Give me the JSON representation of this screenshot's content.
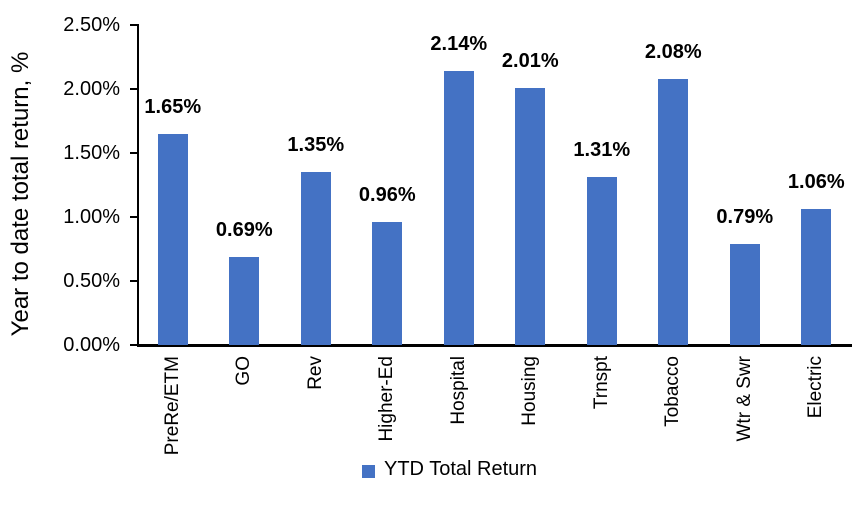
{
  "chart_data": {
    "type": "bar",
    "title": "",
    "xlabel": "",
    "ylabel": "Year to date total return, %",
    "categories": [
      "PreRe/ETM",
      "GO",
      "Rev",
      "Higher-Ed",
      "Hospital",
      "Housing",
      "Trnspt",
      "Tobacco",
      "Wtr & Swr",
      "Electric"
    ],
    "values": [
      1.65,
      0.69,
      1.35,
      0.96,
      2.14,
      2.01,
      1.31,
      2.08,
      0.79,
      1.06
    ],
    "data_labels": [
      "1.65%",
      "0.69%",
      "1.35%",
      "0.96%",
      "2.14%",
      "2.01%",
      "1.31%",
      "2.08%",
      "0.79%",
      "1.06%"
    ],
    "ylim": [
      0,
      2.5
    ],
    "yticks": [
      {
        "value": 0.0,
        "label": "0.00%"
      },
      {
        "value": 0.5,
        "label": "0.50%"
      },
      {
        "value": 1.0,
        "label": "1.00%"
      },
      {
        "value": 1.5,
        "label": "1.50%"
      },
      {
        "value": 2.0,
        "label": "2.00%"
      },
      {
        "value": 2.5,
        "label": "2.50%"
      }
    ],
    "grid": false,
    "legend": {
      "label": "YTD Total Return",
      "position": "bottom"
    },
    "bar_color": "#4472C4",
    "axis_color": "#000000",
    "text_color": "#000000"
  }
}
